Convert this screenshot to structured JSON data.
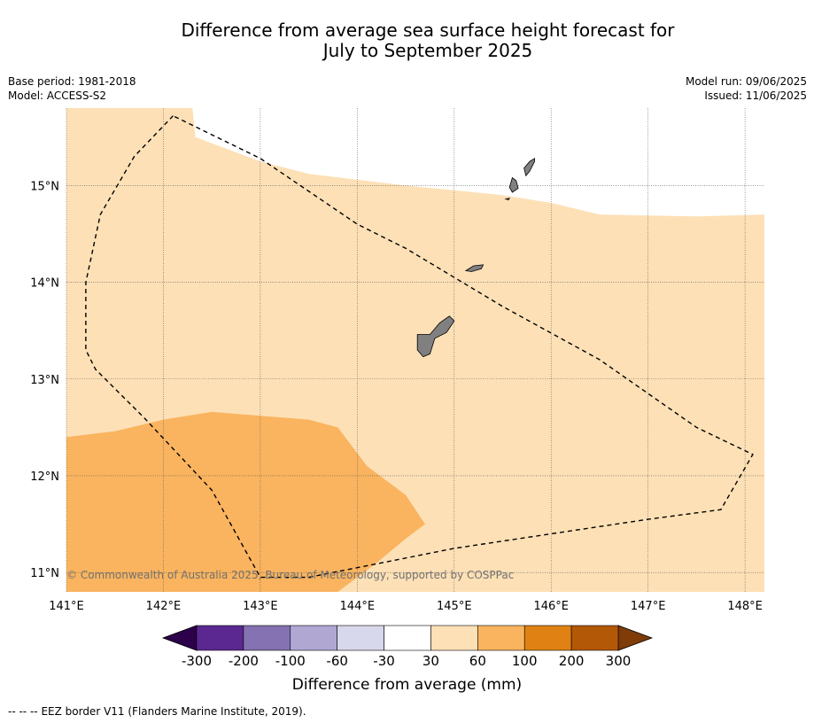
{
  "title": {
    "line1": "Difference from average sea surface height forecast for",
    "line2": "July to September 2025"
  },
  "meta": {
    "base_period": "Base period: 1981-2018",
    "model": "Model: ACCESS-S2",
    "model_run": "Model run: 09/06/2025",
    "issued": "Issued: 11/06/2025"
  },
  "map": {
    "lon_range": [
      141.0,
      148.2
    ],
    "lat_range": [
      10.8,
      15.8
    ],
    "lon_ticks": [
      {
        "value": 141,
        "label": "141°E"
      },
      {
        "value": 142,
        "label": "142°E"
      },
      {
        "value": 143,
        "label": "143°E"
      },
      {
        "value": 144,
        "label": "144°E"
      },
      {
        "value": 145,
        "label": "145°E"
      },
      {
        "value": 146,
        "label": "146°E"
      },
      {
        "value": 147,
        "label": "147°E"
      },
      {
        "value": 148,
        "label": "148°E"
      }
    ],
    "lat_ticks": [
      {
        "value": 11,
        "label": "11°N"
      },
      {
        "value": 12,
        "label": "12°N"
      },
      {
        "value": 13,
        "label": "13°N"
      },
      {
        "value": 14,
        "label": "14°N"
      },
      {
        "value": 15,
        "label": "15°N"
      }
    ],
    "gridlines": true,
    "land_color": "#808080",
    "copyright": "© Commonwealth of Australia 2025, Bureau of Meteorology, supported by COSPPac",
    "regions": [
      {
        "category": "30 to 60",
        "color": "#fde0b6",
        "points": [
          [
            141.0,
            15.8
          ],
          [
            142.3,
            15.8
          ],
          [
            142.33,
            15.5
          ],
          [
            143.0,
            15.25
          ],
          [
            143.5,
            15.12
          ],
          [
            144.5,
            15.0
          ],
          [
            145.0,
            14.95
          ],
          [
            145.5,
            14.9
          ],
          [
            146.0,
            14.82
          ],
          [
            146.5,
            14.7
          ],
          [
            147.5,
            14.68
          ],
          [
            148.2,
            14.7
          ],
          [
            148.2,
            10.8
          ],
          [
            141.0,
            10.8
          ]
        ]
      },
      {
        "category": "60 to 100",
        "color": "#fab45f",
        "points": [
          [
            141.0,
            12.4
          ],
          [
            141.5,
            12.46
          ],
          [
            142.0,
            12.58
          ],
          [
            142.5,
            12.66
          ],
          [
            143.0,
            12.62
          ],
          [
            143.5,
            12.58
          ],
          [
            143.8,
            12.5
          ],
          [
            144.1,
            12.1
          ],
          [
            144.5,
            11.8
          ],
          [
            144.7,
            11.5
          ],
          [
            144.5,
            11.35
          ],
          [
            144.2,
            11.1
          ],
          [
            143.8,
            10.8
          ],
          [
            141.0,
            10.8
          ]
        ]
      }
    ],
    "islands": [
      {
        "name": "Guam",
        "points": [
          [
            144.95,
            13.65
          ],
          [
            145.0,
            13.6
          ],
          [
            144.92,
            13.48
          ],
          [
            144.8,
            13.42
          ],
          [
            144.75,
            13.26
          ],
          [
            144.68,
            13.23
          ],
          [
            144.62,
            13.3
          ],
          [
            144.62,
            13.46
          ],
          [
            144.75,
            13.46
          ],
          [
            144.85,
            13.58
          ]
        ]
      },
      {
        "name": "Rota",
        "points": [
          [
            145.12,
            14.12
          ],
          [
            145.2,
            14.17
          ],
          [
            145.3,
            14.18
          ],
          [
            145.28,
            14.14
          ],
          [
            145.18,
            14.11
          ]
        ]
      },
      {
        "name": "Tinian",
        "points": [
          [
            145.6,
            15.08
          ],
          [
            145.64,
            15.05
          ],
          [
            145.66,
            14.97
          ],
          [
            145.6,
            14.93
          ],
          [
            145.57,
            14.98
          ]
        ]
      },
      {
        "name": "Saipan",
        "points": [
          [
            145.83,
            15.28
          ],
          [
            145.78,
            15.25
          ],
          [
            145.72,
            15.18
          ],
          [
            145.74,
            15.1
          ],
          [
            145.78,
            15.15
          ],
          [
            145.83,
            15.25
          ]
        ]
      },
      {
        "name": "Aguijan",
        "points": [
          [
            145.53,
            14.86
          ],
          [
            145.57,
            14.87
          ],
          [
            145.56,
            14.85
          ]
        ]
      }
    ],
    "eez_border": [
      [
        142.1,
        15.72
      ],
      [
        141.7,
        15.3
      ],
      [
        141.35,
        14.7
      ],
      [
        141.2,
        14.0
      ],
      [
        141.2,
        13.3
      ],
      [
        141.3,
        13.1
      ],
      [
        141.8,
        12.6
      ],
      [
        142.5,
        11.85
      ],
      [
        143.0,
        10.95
      ],
      [
        143.5,
        10.95
      ],
      [
        144.0,
        11.05
      ],
      [
        145.0,
        11.25
      ],
      [
        146.0,
        11.4
      ],
      [
        147.0,
        11.55
      ],
      [
        147.75,
        11.65
      ],
      [
        148.08,
        12.22
      ],
      [
        147.5,
        12.5
      ],
      [
        146.5,
        13.2
      ],
      [
        145.5,
        13.75
      ],
      [
        144.5,
        14.35
      ],
      [
        144.0,
        14.6
      ],
      [
        143.0,
        15.28
      ],
      [
        142.1,
        15.72
      ]
    ]
  },
  "legend": {
    "title": "Difference from average (mm)",
    "ticks": [
      "-300",
      "-200",
      "-100",
      "-60",
      "-30",
      "30",
      "60",
      "100",
      "200",
      "300"
    ],
    "bins": [
      "#5a2890",
      "#8472b2",
      "#b0a7d3",
      "#d8d8ec",
      "#ffffff",
      "#fde0b6",
      "#fab45f",
      "#e08213",
      "#b35806"
    ],
    "under_color": "#2d004b",
    "over_color": "#7f3b08"
  },
  "footer": {
    "eez_symbol": "-- -- --",
    "eez_text": "EEZ border V11 (Flanders Marine Institute, 2019)."
  }
}
